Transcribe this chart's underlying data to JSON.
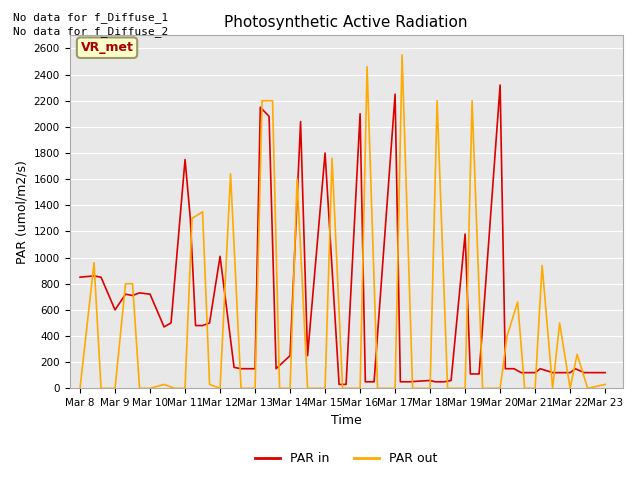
{
  "title": "Photosynthetic Active Radiation",
  "xlabel": "Time",
  "ylabel": "PAR (umol/m2/s)",
  "annotation_line1": "No data for f_Diffuse_1",
  "annotation_line2": "No data for f_Diffuse_2",
  "vr_met_label": "VR_met",
  "legend_labels": [
    "PAR in",
    "PAR out"
  ],
  "color_in": "#dd0000",
  "color_out": "#ffaa00",
  "bg_color": "#e8e8e8",
  "ylim": [
    0,
    2700
  ],
  "yticks": [
    0,
    200,
    400,
    600,
    800,
    1000,
    1200,
    1400,
    1600,
    1800,
    2000,
    2200,
    2400,
    2600
  ],
  "x_labels": [
    "Mar 8",
    "Mar 9",
    "Mar 10",
    "Mar 11",
    "Mar 12",
    "Mar 13",
    "Mar 14",
    "Mar 15",
    "Mar 16",
    "Mar 17",
    "Mar 18",
    "Mar 19",
    "Mar 20",
    "Mar 21",
    "Mar 22",
    "Mar 23"
  ],
  "par_in_x": [
    0,
    0.4,
    0.6,
    1.0,
    1.3,
    1.5,
    1.7,
    2.0,
    2.4,
    2.6,
    3.0,
    3.15,
    3.3,
    3.5,
    3.7,
    4.0,
    4.4,
    4.6,
    5.0,
    5.15,
    5.4,
    5.6,
    6.0,
    6.3,
    6.5,
    7.0,
    7.4,
    7.6,
    8.0,
    8.15,
    8.4,
    9.0,
    9.15,
    9.4,
    10.0,
    10.15,
    10.4,
    10.6,
    11.0,
    11.15,
    11.4,
    12.0,
    12.15,
    12.4,
    12.6,
    13.0,
    13.15,
    13.5,
    14.0,
    14.15,
    14.4,
    15.0
  ],
  "par_in_y": [
    850,
    860,
    850,
    600,
    720,
    710,
    730,
    720,
    470,
    500,
    1750,
    1300,
    480,
    480,
    500,
    1010,
    160,
    150,
    150,
    2150,
    2080,
    150,
    250,
    2040,
    250,
    1800,
    30,
    30,
    2100,
    50,
    50,
    2250,
    50,
    50,
    60,
    50,
    50,
    60,
    1180,
    110,
    110,
    2320,
    150,
    150,
    120,
    120,
    150,
    120,
    120,
    150,
    120,
    120
  ],
  "par_out_x": [
    0,
    0.4,
    0.6,
    1.0,
    1.3,
    1.5,
    1.7,
    2.0,
    2.4,
    2.7,
    3.0,
    3.2,
    3.5,
    3.7,
    4.0,
    4.3,
    4.6,
    5.0,
    5.2,
    5.5,
    5.7,
    6.0,
    6.2,
    6.5,
    7.0,
    7.2,
    7.5,
    8.0,
    8.2,
    8.5,
    9.0,
    9.2,
    9.5,
    10.0,
    10.2,
    10.5,
    11.0,
    11.2,
    11.5,
    12.0,
    12.2,
    12.5,
    12.7,
    13.0,
    13.2,
    13.5,
    13.7,
    14.0,
    14.2,
    14.5,
    15.0
  ],
  "par_out_y": [
    0,
    960,
    0,
    0,
    800,
    800,
    0,
    0,
    30,
    0,
    0,
    1300,
    1350,
    30,
    0,
    1640,
    0,
    0,
    2200,
    2200,
    0,
    0,
    1600,
    0,
    0,
    1760,
    0,
    0,
    2460,
    0,
    0,
    2550,
    0,
    0,
    2200,
    0,
    0,
    2200,
    0,
    0,
    400,
    660,
    0,
    0,
    940,
    0,
    500,
    0,
    260,
    0,
    30
  ],
  "title_fontsize": 11,
  "label_fontsize": 9,
  "tick_fontsize": 7.5,
  "linewidth": 1.2
}
